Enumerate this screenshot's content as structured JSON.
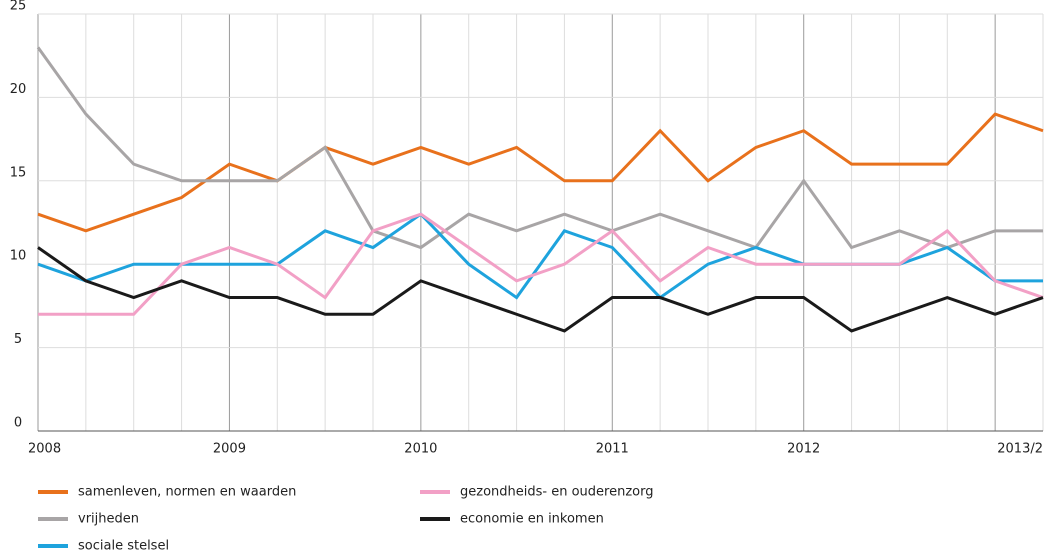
{
  "chart_data": {
    "type": "line",
    "categories": [
      "2008",
      null,
      null,
      null,
      "2009",
      null,
      null,
      null,
      "2010",
      null,
      null,
      null,
      "2011",
      null,
      null,
      null,
      "2012",
      null,
      null,
      null,
      null,
      "2013/2"
    ],
    "series": [
      {
        "name": "samenleven, normen en waarden",
        "color": "#e8711c",
        "values": [
          13,
          12,
          13,
          14,
          16,
          15,
          17,
          16,
          17,
          16,
          17,
          15,
          15,
          18,
          15,
          17,
          18,
          16,
          16,
          16,
          19,
          18
        ]
      },
      {
        "name": "vrijheden",
        "color": "#a8a5a6",
        "values": [
          23,
          19,
          16,
          15,
          15,
          15,
          17,
          12,
          11,
          13,
          12,
          13,
          12,
          13,
          12,
          11,
          15,
          11,
          12,
          11,
          12,
          12
        ]
      },
      {
        "name": "sociale stelsel",
        "color": "#1ea3dd",
        "values": [
          10,
          9,
          10,
          10,
          10,
          10,
          12,
          11,
          13,
          10,
          8,
          12,
          11,
          8,
          10,
          11,
          10,
          10,
          10,
          11,
          9,
          9
        ]
      },
      {
        "name": "gezondheids- en ouderenzorg",
        "color": "#f2a0c6",
        "values": [
          7,
          7,
          7,
          10,
          11,
          10,
          8,
          12,
          13,
          11,
          9,
          10,
          12,
          9,
          11,
          10,
          10,
          10,
          10,
          12,
          9,
          8
        ]
      },
      {
        "name": "economie en inkomen",
        "color": "#1a1a1a",
        "values": [
          11,
          9,
          8,
          9,
          8,
          8,
          7,
          7,
          9,
          8,
          7,
          6,
          8,
          8,
          7,
          8,
          8,
          6,
          7,
          8,
          7,
          8
        ]
      }
    ],
    "ylim": [
      0,
      25
    ],
    "yticks": [
      0,
      5,
      10,
      15,
      20,
      25
    ],
    "grid": true
  }
}
